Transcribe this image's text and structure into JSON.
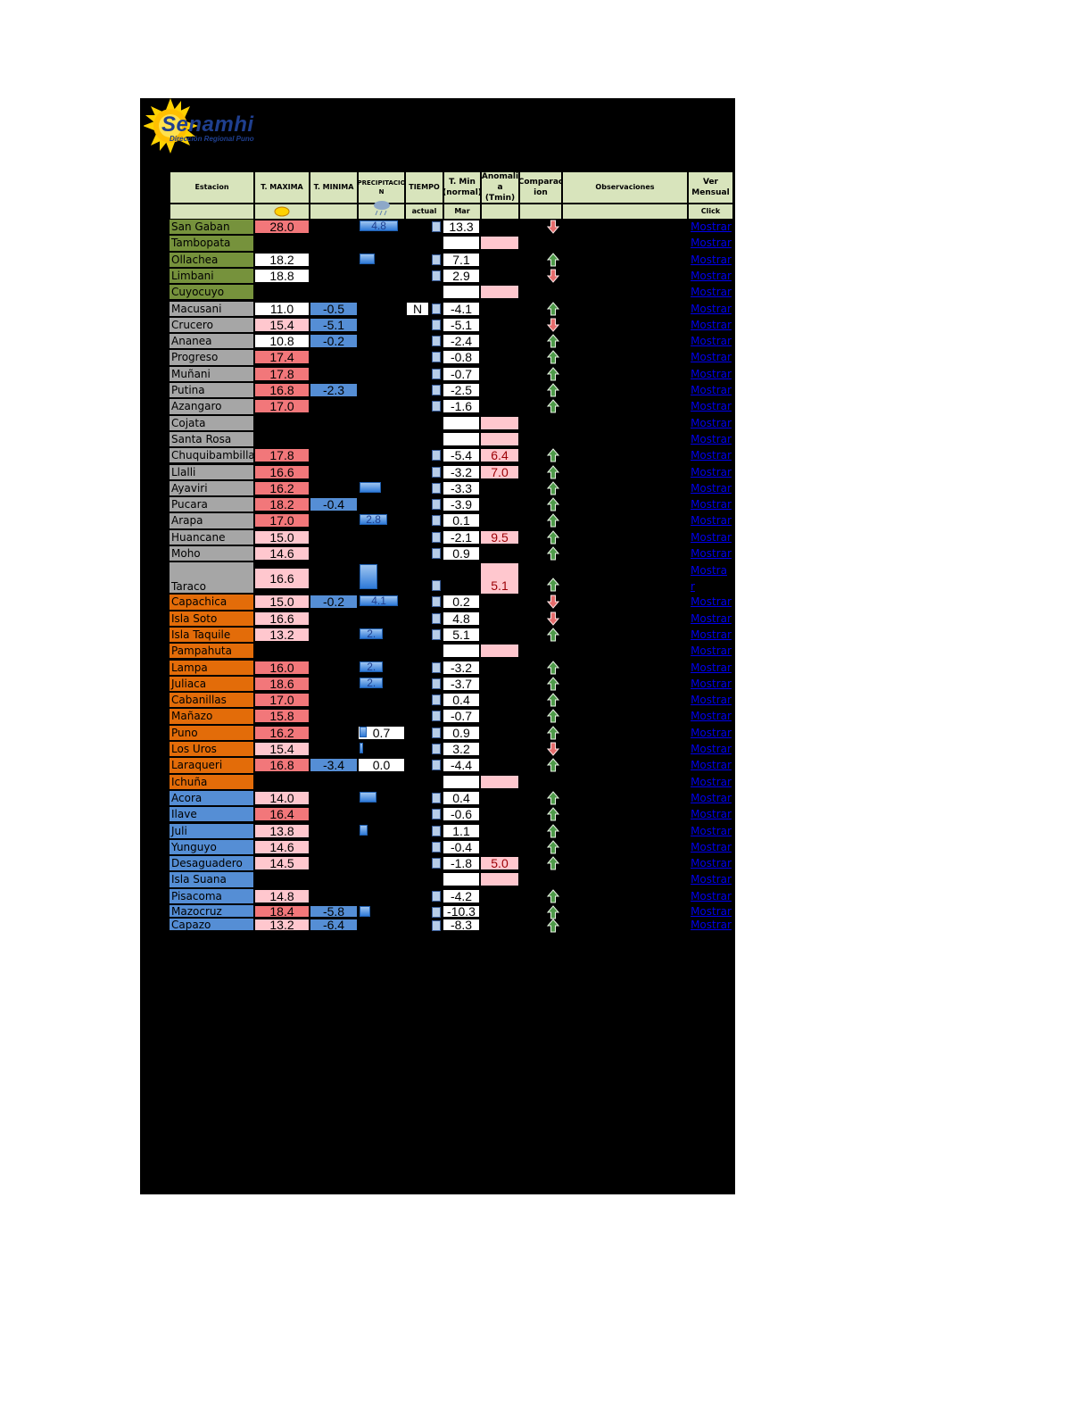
{
  "logo": {
    "brand": "Senamhi",
    "subtitle": "Dirección Regional Puno"
  },
  "headers": {
    "estacion": "Estacion",
    "tmax": "T. MAXIMA",
    "tmin": "T. MINIMA",
    "precip": "PRECIPITACIO N",
    "tiempo": "TIEMPO",
    "tmin_normal": "T. Min (normal)",
    "anomalia": "Anomali a (Tmin)",
    "comparacion": "Comparac ion",
    "observaciones": "Observaciones",
    "ver": "Ver Mensual"
  },
  "subheaders": {
    "tiempo": "actual",
    "tmin_normal": "Mar",
    "ver": "Click"
  },
  "colors": {
    "green": "#76923c",
    "gray": "#a6a6a6",
    "orange": "#e36c09",
    "blue": "#558ed5",
    "hot": "#f2777a",
    "warm": "#ffc7ce",
    "link": "#0000ee"
  },
  "stations": [
    {
      "name": "San Gaban",
      "group": "green",
      "tmax": "28.0",
      "tmax_c": "hot",
      "tmin": "",
      "precip": "4.8",
      "precip_level": 0.9,
      "tiempo": "",
      "tmin_n": "13.3",
      "anom": "",
      "trend": "down"
    },
    {
      "name": "Tambopata",
      "group": "green",
      "tmax": "",
      "tmax_c": "",
      "tmin": "",
      "precip": "",
      "precip_level": 0,
      "tiempo": "",
      "tmin_n": "",
      "anom": "",
      "anom_box": true,
      "trend": ""
    },
    {
      "name": "Ollachea",
      "group": "green",
      "tmax": "18.2",
      "tmax_c": "wht",
      "tmin": "",
      "precip": "",
      "precip_level": 0.35,
      "tiempo": "",
      "tmin_n": "7.1",
      "anom": "",
      "trend": "up"
    },
    {
      "name": "Limbani",
      "group": "green",
      "tmax": "18.8",
      "tmax_c": "wht",
      "tmin": "",
      "precip": "",
      "precip_level": 0,
      "tiempo": "",
      "tmin_n": "2.9",
      "anom": "",
      "trend": "down"
    },
    {
      "name": "Cuyocuyo",
      "group": "green",
      "tmax": "",
      "tmax_c": "",
      "tmin": "",
      "precip": "",
      "precip_level": 0,
      "tiempo": "",
      "tmin_n": "",
      "anom": "",
      "anom_box": true,
      "trend": ""
    },
    {
      "name": "Macusani",
      "group": "gray",
      "tmax": "11.0",
      "tmax_c": "wht",
      "tmin": "-0.5",
      "precip": "",
      "precip_level": 0,
      "tiempo": "N",
      "tmin_n": "-4.1",
      "anom": "",
      "trend": "up"
    },
    {
      "name": "Crucero",
      "group": "gray",
      "tmax": "15.4",
      "tmax_c": "warm",
      "tmin": "-5.1",
      "precip": "",
      "precip_level": 0,
      "tiempo": "",
      "tmin_n": "-5.1",
      "anom": "",
      "trend": "down"
    },
    {
      "name": "Ananea",
      "group": "gray",
      "tmax": "10.8",
      "tmax_c": "wht",
      "tmin": "-0.2",
      "precip": "",
      "precip_level": 0,
      "tiempo": "",
      "tmin_n": "-2.4",
      "anom": "",
      "trend": "up"
    },
    {
      "name": "Progreso",
      "group": "gray",
      "tmax": "17.4",
      "tmax_c": "hot",
      "tmin": "",
      "precip": "",
      "precip_level": 0,
      "tiempo": "",
      "tmin_n": "-0.8",
      "anom": "",
      "trend": "up"
    },
    {
      "name": "Muñani",
      "group": "gray",
      "tmax": "17.8",
      "tmax_c": "hot",
      "tmin": "",
      "precip": "",
      "precip_level": 0,
      "tiempo": "",
      "tmin_n": "-0.7",
      "anom": "",
      "trend": "up"
    },
    {
      "name": "Putina",
      "group": "gray",
      "tmax": "16.8",
      "tmax_c": "hot",
      "tmin": "-2.3",
      "precip": "",
      "precip_level": 0,
      "tiempo": "",
      "tmin_n": "-2.5",
      "anom": "",
      "trend": "up"
    },
    {
      "name": "Azangaro",
      "group": "gray",
      "tmax": "17.0",
      "tmax_c": "hot",
      "tmin": "",
      "precip": "",
      "precip_level": 0,
      "tiempo": "",
      "tmin_n": "-1.6",
      "anom": "",
      "trend": "up"
    },
    {
      "name": "Cojata",
      "group": "gray",
      "tmax": "",
      "tmax_c": "",
      "tmin": "",
      "precip": "",
      "precip_level": 0,
      "tiempo": "",
      "tmin_n": "",
      "anom": "",
      "anom_box": true,
      "trend": ""
    },
    {
      "name": "Santa Rosa",
      "group": "gray",
      "tmax": "",
      "tmax_c": "",
      "tmin": "",
      "precip": "",
      "precip_level": 0,
      "tiempo": "",
      "tmin_n": "",
      "anom": "",
      "anom_box": true,
      "trend": ""
    },
    {
      "name": "Chuquibambilla",
      "group": "gray",
      "tmax": "17.8",
      "tmax_c": "hot",
      "tmin": "",
      "precip": "",
      "precip_level": 0,
      "tiempo": "",
      "tmin_n": "-5.4",
      "anom": "6.4",
      "trend": "up"
    },
    {
      "name": "Llalli",
      "group": "gray",
      "tmax": "16.6",
      "tmax_c": "hot",
      "tmin": "",
      "precip": "",
      "precip_level": 0,
      "tiempo": "",
      "tmin_n": "-3.2",
      "anom": "7.0",
      "trend": "up"
    },
    {
      "name": "Ayaviri",
      "group": "gray",
      "tmax": "16.2",
      "tmax_c": "hot",
      "tmin": "",
      "precip": "",
      "precip_level": 0.5,
      "tiempo": "",
      "tmin_n": "-3.3",
      "anom": "",
      "trend": "up"
    },
    {
      "name": "Pucara",
      "group": "gray",
      "tmax": "18.2",
      "tmax_c": "hot",
      "tmin": "-0.4",
      "precip": "",
      "precip_level": 0,
      "tiempo": "",
      "tmin_n": "-3.9",
      "anom": "",
      "trend": "up"
    },
    {
      "name": "Arapa",
      "group": "gray",
      "tmax": "17.0",
      "tmax_c": "hot",
      "tmin": "",
      "precip": "2.8",
      "precip_level": 0.65,
      "tiempo": "",
      "tmin_n": "0.1",
      "anom": "",
      "trend": "up"
    },
    {
      "name": "Huancane",
      "group": "gray",
      "tmax": "15.0",
      "tmax_c": "warm",
      "tmin": "",
      "precip": "",
      "precip_level": 0,
      "tiempo": "",
      "tmin_n": "-2.1",
      "anom": "9.5",
      "trend": "up"
    },
    {
      "name": "Moho",
      "group": "gray",
      "tmax": "14.6",
      "tmax_c": "warm",
      "tmin": "",
      "precip": "",
      "precip_level": 0,
      "tiempo": "",
      "tmin_n": "0.9",
      "anom": "",
      "trend": "up"
    },
    {
      "name": "Taraco",
      "group": "gray",
      "tall": true,
      "tmax": "16.6",
      "tmax_c": "warm",
      "tmin": "",
      "precip": "",
      "precip_level": 0.4,
      "tiempo": "",
      "tmin_n": "",
      "anom": "5.1",
      "trend": "up"
    },
    {
      "name": "Capachica",
      "group": "orange",
      "tmax": "15.0",
      "tmax_c": "warm",
      "tmin": "-0.2",
      "precip": "4.1",
      "precip_level": 0.9,
      "tiempo": "",
      "tmin_n": "0.2",
      "anom": "",
      "trend": "down"
    },
    {
      "name": "Isla Soto",
      "group": "orange",
      "tmax": "16.6",
      "tmax_c": "warm",
      "tmin": "",
      "precip": "",
      "precip_level": 0,
      "tiempo": "",
      "tmin_n": "4.8",
      "anom": "",
      "trend": "down"
    },
    {
      "name": "Isla Taquile",
      "group": "orange",
      "tmax": "13.2",
      "tmax_c": "warm",
      "tmin": "",
      "precip": "2.",
      "precip_level": 0.55,
      "tiempo": "",
      "tmin_n": "5.1",
      "anom": "",
      "trend": "up"
    },
    {
      "name": "Pampahuta",
      "group": "orange",
      "tmax": "",
      "tmax_c": "",
      "tmin": "",
      "precip": "",
      "precip_level": 0,
      "tiempo": "",
      "tmin_n": "",
      "anom": "",
      "anom_box": true,
      "trend": ""
    },
    {
      "name": "Lampa",
      "group": "orange",
      "tmax": "16.0",
      "tmax_c": "hot",
      "tmin": "",
      "precip": "2.",
      "precip_level": 0.55,
      "tiempo": "",
      "tmin_n": "-3.2",
      "anom": "",
      "trend": "up"
    },
    {
      "name": "Juliaca",
      "group": "orange",
      "tmax": "18.6",
      "tmax_c": "hot",
      "tmin": "",
      "precip": "2.",
      "precip_level": 0.55,
      "tiempo": "",
      "tmin_n": "-3.7",
      "anom": "",
      "trend": "up"
    },
    {
      "name": "Cabanillas",
      "group": "orange",
      "tmax": "17.0",
      "tmax_c": "hot",
      "tmin": "",
      "precip": "",
      "precip_level": 0,
      "tiempo": "",
      "tmin_n": "0.4",
      "anom": "",
      "trend": "up"
    },
    {
      "name": "Mañazo",
      "group": "orange",
      "tmax": "15.8",
      "tmax_c": "hot",
      "tmin": "",
      "precip": "",
      "precip_level": 0,
      "tiempo": "",
      "tmin_n": "-0.7",
      "anom": "",
      "trend": "up"
    },
    {
      "name": "Puno",
      "group": "orange",
      "tmax": "16.2",
      "tmax_c": "hot",
      "tmin": "",
      "precip": "0.7",
      "precip_level": 0.15,
      "precip_white": true,
      "tiempo": "",
      "tmin_n": "0.9",
      "anom": "",
      "trend": "up"
    },
    {
      "name": "Los Uros",
      "group": "orange",
      "tmax": "15.4",
      "tmax_c": "warm",
      "tmin": "",
      "precip": "",
      "precip_level": 0.08,
      "tiempo": "",
      "tmin_n": "3.2",
      "anom": "",
      "trend": "down"
    },
    {
      "name": "Laraqueri",
      "group": "orange",
      "tmax": "16.8",
      "tmax_c": "hot",
      "tmin": "-3.4",
      "precip": "0.0",
      "precip_level": 0,
      "precip_white": true,
      "tiempo": "",
      "tmin_n": "-4.4",
      "anom": "",
      "trend": "up"
    },
    {
      "name": "Ichuña",
      "group": "orange",
      "tmax": "",
      "tmax_c": "",
      "tmin": "",
      "precip": "",
      "precip_level": 0,
      "tiempo": "",
      "tmin_n": "",
      "anom": "",
      "anom_box": true,
      "trend": ""
    },
    {
      "name": "Acora",
      "group": "blue",
      "tmax": "14.0",
      "tmax_c": "warm",
      "tmin": "",
      "precip": "",
      "precip_level": 0.4,
      "tiempo": "",
      "tmin_n": "0.4",
      "anom": "",
      "trend": "up"
    },
    {
      "name": "Ilave",
      "group": "blue",
      "tmax": "16.4",
      "tmax_c": "hot",
      "tmin": "",
      "precip": "",
      "precip_level": 0,
      "tiempo": "",
      "tmin_n": "-0.6",
      "anom": "",
      "trend": "up"
    },
    {
      "name": "Juli",
      "group": "blue",
      "tmax": "13.8",
      "tmax_c": "warm",
      "tmin": "",
      "precip": "",
      "precip_level": 0.18,
      "tiempo": "",
      "tmin_n": "1.1",
      "anom": "",
      "trend": "up"
    },
    {
      "name": "Yunguyo",
      "group": "blue",
      "tmax": "14.6",
      "tmax_c": "warm",
      "tmin": "",
      "precip": "",
      "precip_level": 0,
      "tiempo": "",
      "tmin_n": "-0.4",
      "anom": "",
      "trend": "up"
    },
    {
      "name": "Desaguadero",
      "group": "blue",
      "tmax": "14.5",
      "tmax_c": "warm",
      "tmin": "",
      "precip": "",
      "precip_level": 0,
      "tiempo": "",
      "tmin_n": "-1.8",
      "anom": "5.0",
      "trend": "up"
    },
    {
      "name": "Isla Suana",
      "group": "blue",
      "tmax": "",
      "tmax_c": "",
      "tmin": "",
      "precip": "",
      "precip_level": 0,
      "tiempo": "",
      "tmin_n": "",
      "anom": "",
      "anom_box": true,
      "trend": ""
    },
    {
      "name": "Pisacoma",
      "group": "blue",
      "tmax": "14.8",
      "tmax_c": "warm",
      "tmin": "",
      "precip": "",
      "precip_level": 0,
      "tiempo": "",
      "tmin_n": "-4.2",
      "anom": "",
      "trend": "up"
    },
    {
      "name": "Mazocruz",
      "group": "blue",
      "short": true,
      "tmax": "18.4",
      "tmax_c": "hot",
      "tmin": "-5.8",
      "precip": "",
      "precip_level": 0.25,
      "tiempo": "",
      "tmin_n": "-10.3",
      "anom": "",
      "trend": "up"
    },
    {
      "name": "Capazo",
      "group": "blue",
      "short": true,
      "tmax": "13.2",
      "tmax_c": "warm",
      "tmin": "-6.4",
      "precip": "",
      "precip_level": 0,
      "tiempo": "",
      "tmin_n": "-8.3",
      "anom": "",
      "trend": "up"
    }
  ],
  "link_label": "Mostrar",
  "link_label_wrapped": [
    "Mostra",
    "r"
  ]
}
